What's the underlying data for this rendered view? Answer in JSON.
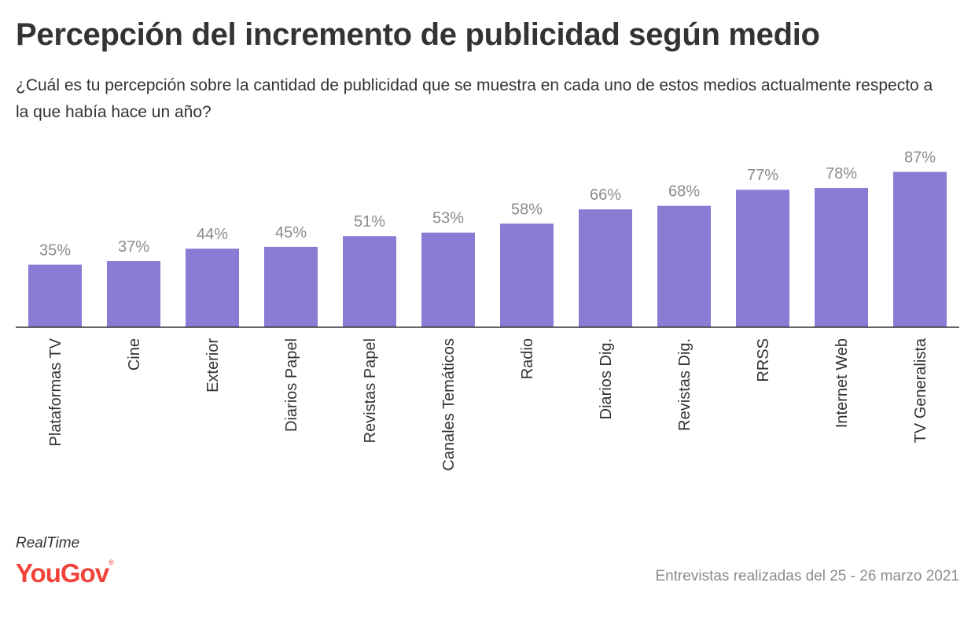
{
  "header": {
    "title": "Percepción del incremento de publicidad según medio",
    "subtitle": "¿Cuál es tu percepción sobre la cantidad de publicidad que se muestra en cada uno de estos medios actualmente respecto a la que había hace un año?"
  },
  "footer": {
    "realtime": "RealTime",
    "logo_text": "YouGov",
    "logo_mark": "®",
    "note": "Entrevistas realizadas del 25 - 26 marzo 2021"
  },
  "colors": {
    "bar": "#8a7bd4",
    "axis": "#333333",
    "value_label": "#8b8b8b",
    "logo": "#f2433a"
  },
  "chart_data": {
    "type": "bar",
    "title": "Percepción del incremento de publicidad según medio",
    "xlabel": "",
    "ylabel": "",
    "ylim": [
      0,
      100
    ],
    "grid": false,
    "value_suffix": "%",
    "categories": [
      "Plataformas TV",
      "Cine",
      "Exterior",
      "Diarios Papel",
      "Revistas Papel",
      "Canales Temáticos",
      "Radio",
      "Diarios Dig.",
      "Revistas Dig.",
      "RRSS",
      "Internet Web",
      "TV Generalista"
    ],
    "values": [
      35,
      37,
      44,
      45,
      51,
      53,
      58,
      66,
      68,
      77,
      78,
      87
    ]
  }
}
